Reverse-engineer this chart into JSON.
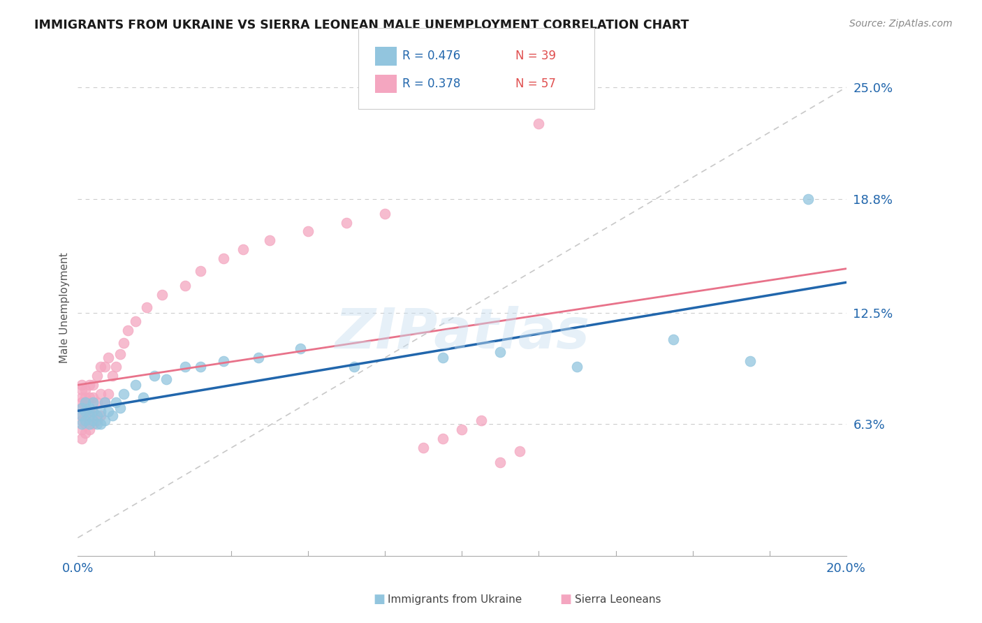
{
  "title": "IMMIGRANTS FROM UKRAINE VS SIERRA LEONEAN MALE UNEMPLOYMENT CORRELATION CHART",
  "source": "Source: ZipAtlas.com",
  "ylabel": "Male Unemployment",
  "xlim": [
    0.0,
    0.2
  ],
  "ylim": [
    -0.01,
    0.265
  ],
  "ytick_labels": [
    "6.3%",
    "12.5%",
    "18.8%",
    "25.0%"
  ],
  "ytick_values": [
    0.063,
    0.125,
    0.188,
    0.25
  ],
  "xtick_values": [
    0.0,
    0.2
  ],
  "xtick_labels": [
    "0.0%",
    "20.0%"
  ],
  "legend_r1": "R = 0.476",
  "legend_n1": "N = 39",
  "legend_r2": "R = 0.378",
  "legend_n2": "N = 57",
  "blue_color": "#92c5de",
  "pink_color": "#f4a6c0",
  "trend_blue": "#2166ac",
  "trend_pink": "#e8728a",
  "ref_line_color": "#c8c8c8",
  "watermark": "ZIPatlas",
  "ukraine_x": [
    0.001,
    0.001,
    0.001,
    0.002,
    0.002,
    0.002,
    0.003,
    0.003,
    0.003,
    0.004,
    0.004,
    0.004,
    0.005,
    0.005,
    0.006,
    0.006,
    0.007,
    0.007,
    0.008,
    0.009,
    0.01,
    0.011,
    0.012,
    0.015,
    0.017,
    0.02,
    0.023,
    0.028,
    0.032,
    0.038,
    0.047,
    0.058,
    0.072,
    0.095,
    0.11,
    0.13,
    0.155,
    0.175,
    0.19
  ],
  "ukraine_y": [
    0.063,
    0.068,
    0.072,
    0.065,
    0.07,
    0.075,
    0.063,
    0.068,
    0.072,
    0.065,
    0.07,
    0.075,
    0.063,
    0.068,
    0.063,
    0.07,
    0.065,
    0.075,
    0.07,
    0.068,
    0.075,
    0.072,
    0.08,
    0.085,
    0.078,
    0.09,
    0.088,
    0.095,
    0.095,
    0.098,
    0.1,
    0.105,
    0.095,
    0.1,
    0.103,
    0.095,
    0.11,
    0.098,
    0.188
  ],
  "sierra_x": [
    0.001,
    0.001,
    0.001,
    0.001,
    0.001,
    0.001,
    0.001,
    0.001,
    0.001,
    0.002,
    0.002,
    0.002,
    0.002,
    0.002,
    0.002,
    0.003,
    0.003,
    0.003,
    0.003,
    0.003,
    0.004,
    0.004,
    0.004,
    0.004,
    0.005,
    0.005,
    0.005,
    0.006,
    0.006,
    0.006,
    0.007,
    0.007,
    0.008,
    0.008,
    0.009,
    0.01,
    0.011,
    0.012,
    0.013,
    0.015,
    0.018,
    0.022,
    0.028,
    0.032,
    0.038,
    0.043,
    0.05,
    0.06,
    0.07,
    0.08,
    0.09,
    0.095,
    0.1,
    0.105,
    0.11,
    0.115,
    0.12
  ],
  "sierra_y": [
    0.055,
    0.06,
    0.065,
    0.068,
    0.072,
    0.075,
    0.078,
    0.082,
    0.085,
    0.058,
    0.063,
    0.068,
    0.072,
    0.078,
    0.082,
    0.06,
    0.065,
    0.07,
    0.078,
    0.085,
    0.063,
    0.07,
    0.078,
    0.085,
    0.065,
    0.075,
    0.09,
    0.068,
    0.08,
    0.095,
    0.075,
    0.095,
    0.08,
    0.1,
    0.09,
    0.095,
    0.102,
    0.108,
    0.115,
    0.12,
    0.128,
    0.135,
    0.14,
    0.148,
    0.155,
    0.16,
    0.165,
    0.17,
    0.175,
    0.18,
    0.05,
    0.055,
    0.06,
    0.065,
    0.042,
    0.048,
    0.23
  ]
}
